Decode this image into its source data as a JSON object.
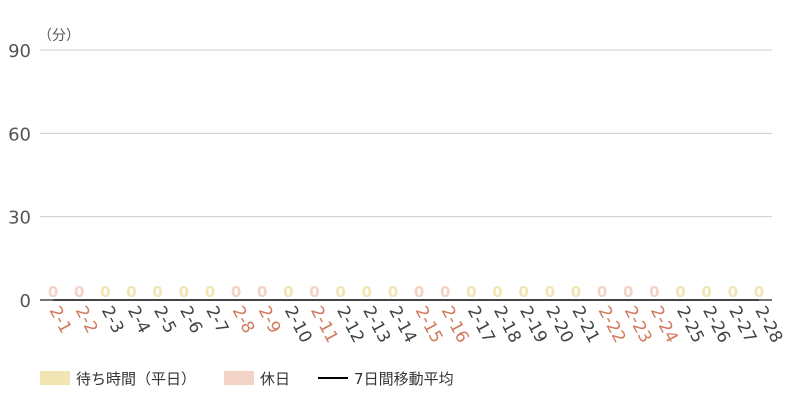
{
  "chart_data": {
    "type": "bar",
    "unit_label": "（分）",
    "ylim": [
      0,
      90
    ],
    "yticks": [
      0,
      30,
      60,
      90
    ],
    "grid": true,
    "categories": [
      "2-1",
      "2-2",
      "2-3",
      "2-4",
      "2-5",
      "2-6",
      "2-7",
      "2-8",
      "2-9",
      "2-10",
      "2-11",
      "2-12",
      "2-13",
      "2-14",
      "2-15",
      "2-16",
      "2-17",
      "2-18",
      "2-19",
      "2-20",
      "2-21",
      "2-22",
      "2-23",
      "2-24",
      "2-25",
      "2-26",
      "2-27",
      "2-28"
    ],
    "holidays": [
      true,
      true,
      false,
      false,
      false,
      false,
      false,
      true,
      true,
      false,
      true,
      false,
      false,
      false,
      true,
      true,
      false,
      false,
      false,
      false,
      false,
      true,
      true,
      true,
      false,
      false,
      false,
      false
    ],
    "values": [
      0,
      0,
      0,
      0,
      0,
      0,
      0,
      0,
      0,
      0,
      0,
      0,
      0,
      0,
      0,
      0,
      0,
      0,
      0,
      0,
      0,
      0,
      0,
      0,
      0,
      0,
      0,
      0
    ],
    "moving_average": [
      0,
      0,
      0,
      0,
      0,
      0,
      0,
      0,
      0,
      0,
      0,
      0,
      0,
      0,
      0,
      0,
      0,
      0,
      0,
      0,
      0,
      0,
      0,
      0,
      0,
      0,
      0,
      0
    ],
    "colors": {
      "weekday": "#f1e5b4",
      "holiday": "#f3d3c6",
      "holiday_text": "#d07a5e",
      "weekday_text": "#444444",
      "grid": "#cccccc",
      "axis": "#222222",
      "moving_average": "#000000"
    },
    "legend": [
      {
        "label": "待ち時間（平日）",
        "kind": "weekday"
      },
      {
        "label": "休日",
        "kind": "holiday"
      },
      {
        "label": "7日間移動平均",
        "kind": "line"
      }
    ],
    "legend_position": "bottom-left"
  }
}
